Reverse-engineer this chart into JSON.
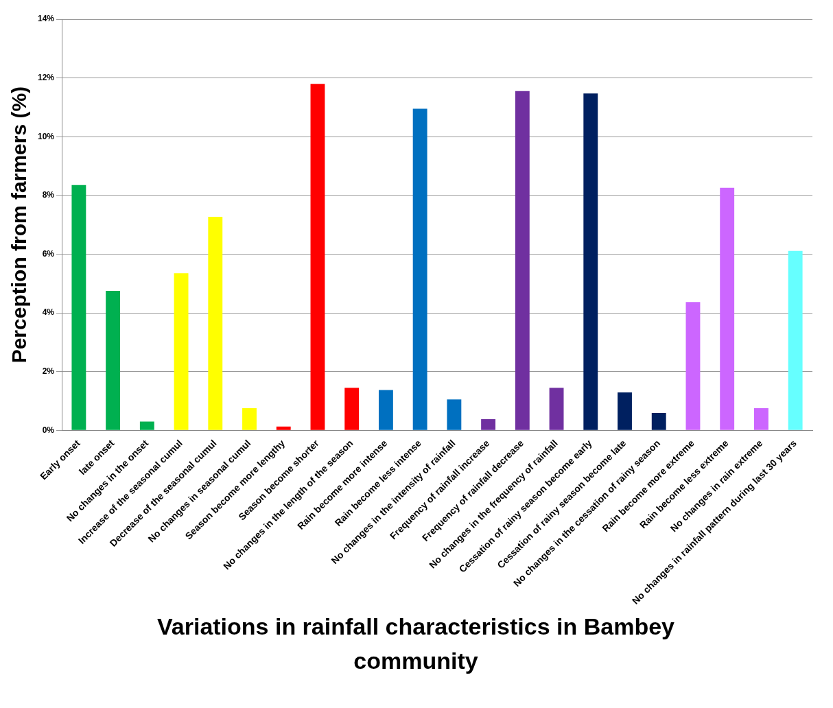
{
  "chart_data": {
    "type": "bar",
    "xlabel": "Variations in rainfall characteristics in Bambey community",
    "ylabel": "Perception from farmers (%)",
    "categories": [
      "Early onset",
      "late onset",
      "No changes in the onset",
      "Increase of the seasonal cumul",
      "Decrease of the seasonal cumul",
      "No changes in seasonal cumul",
      "Season become more lengthy",
      "Season become shorter",
      "No changes in the length of the season",
      "Rain become more intense",
      "Rain become less intense",
      "No changes in the intensity of rainfall",
      "Frequency of rainfall increase",
      "Frequency of rainfall decrease",
      "No changes in the frequency of rainfall",
      "Cessation of rainy season become early",
      "Cessation of rainy season become late",
      "No changes in the cessation of rainy season",
      "Rain become more extreme",
      "Rain become less extreme",
      "No changes in rain extreme",
      "No changes in rainfall pattern during last 30 years"
    ],
    "values": [
      8.35,
      4.75,
      0.3,
      5.35,
      7.27,
      0.75,
      0.13,
      11.8,
      1.45,
      1.37,
      10.95,
      1.05,
      0.38,
      11.55,
      1.45,
      11.47,
      1.29,
      0.59,
      4.37,
      8.26,
      0.75,
      6.11
    ],
    "colors": [
      "#00b050",
      "#00b050",
      "#00b050",
      "#ffff00",
      "#ffff00",
      "#ffff00",
      "#ff0000",
      "#ff0000",
      "#ff0000",
      "#0070c0",
      "#0070c0",
      "#0070c0",
      "#7030a0",
      "#7030a0",
      "#7030a0",
      "#002060",
      "#002060",
      "#002060",
      "#cc66ff",
      "#cc66ff",
      "#cc66ff",
      "#66ffff"
    ],
    "ylim": [
      0,
      14
    ],
    "yticks": [
      {
        "value": 0,
        "label": "0%"
      },
      {
        "value": 2,
        "label": "2%"
      },
      {
        "value": 4,
        "label": "4%"
      },
      {
        "value": 6,
        "label": "6%"
      },
      {
        "value": 8,
        "label": "8%"
      },
      {
        "value": 10,
        "label": "10%"
      },
      {
        "value": 12,
        "label": "12%"
      },
      {
        "value": 14,
        "label": "14%"
      }
    ],
    "grid": "y",
    "legend": false
  }
}
